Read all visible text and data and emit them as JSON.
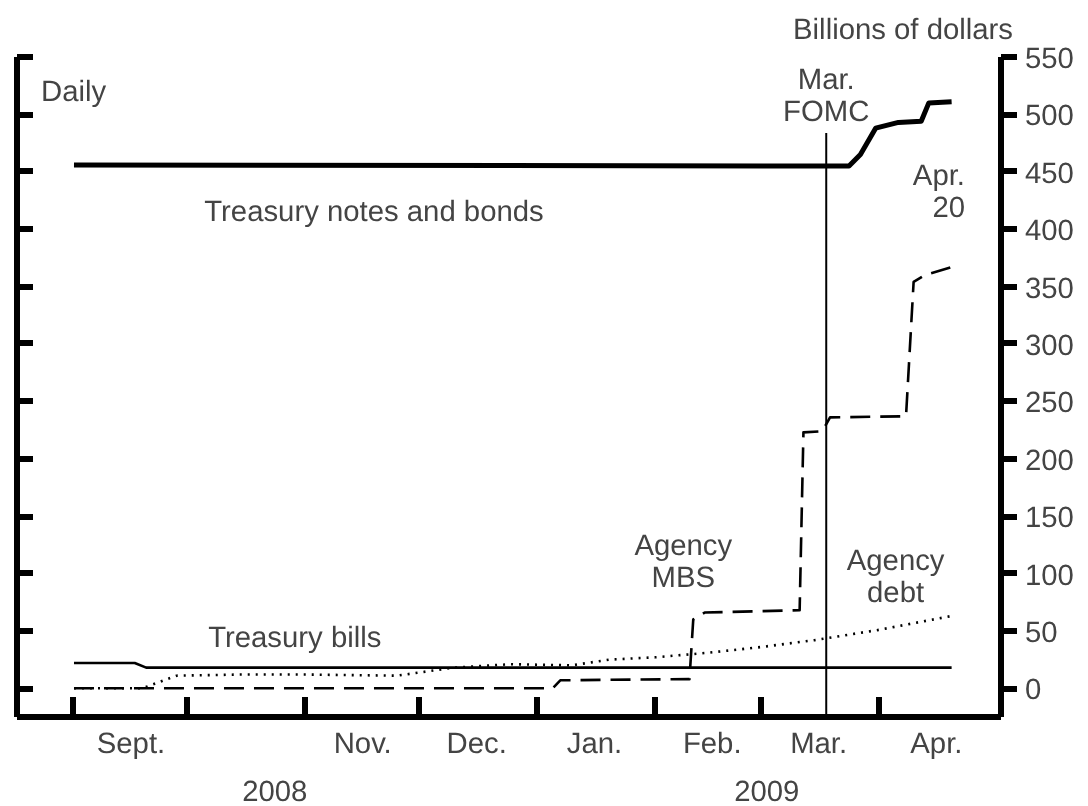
{
  "chart_data": {
    "type": "line",
    "ylabel": "Billions of dollars",
    "xlim": [
      "2008-08-17",
      "2009-05-03"
    ],
    "ylim": [
      -25,
      550
    ],
    "yticks": [
      0,
      50,
      100,
      150,
      200,
      250,
      300,
      350,
      400,
      450,
      500,
      550
    ],
    "xticks": [
      {
        "value": "2008-09-01",
        "label": null
      },
      {
        "value": "2008-10-01",
        "label": null
      },
      {
        "value": "2008-11-01",
        "label": null
      },
      {
        "value": "2008-12-01",
        "label": null
      },
      {
        "value": "2009-01-01",
        "label": null
      },
      {
        "value": "2009-02-01",
        "label": null
      },
      {
        "value": "2009-03-01",
        "label": null
      },
      {
        "value": "2009-04-01",
        "label": null
      },
      {
        "value": "2008-09-16",
        "label": "Sept."
      },
      {
        "value": "2008-11-16",
        "label": "Nov."
      },
      {
        "value": "2008-12-16",
        "label": "Dec."
      },
      {
        "value": "2009-01-16",
        "label": "Jan."
      },
      {
        "value": "2009-02-16",
        "label": "Feb."
      },
      {
        "value": "2009-03-16",
        "label": "Mar."
      },
      {
        "value": "2009-04-16",
        "label": "Apr."
      }
    ],
    "grid": false,
    "series": [
      {
        "name": "Treasury notes and bonds",
        "color": "#000000",
        "line_style": "solid",
        "x": [
          "2008-09-01",
          "2009-03-24",
          "2009-03-27",
          "2009-03-31",
          "2009-04-06",
          "2009-04-12",
          "2009-04-14",
          "2009-04-20"
        ],
        "values": [
          456,
          455,
          465,
          488,
          493,
          494,
          510,
          511
        ]
      },
      {
        "name": "Treasury bills",
        "color": "#000000",
        "line_style": "solid",
        "x": [
          "2008-09-01",
          "2008-09-17",
          "2008-09-20",
          "2009-04-20"
        ],
        "values": [
          22,
          22,
          18,
          18
        ]
      },
      {
        "name": "Agency MBS",
        "color": "#000000",
        "line_style": "dashed",
        "x": [
          "2008-09-01",
          "2009-01-05",
          "2009-01-07",
          "2009-02-10",
          "2009-02-11",
          "2009-02-14",
          "2009-03-11",
          "2009-03-12",
          "2009-03-17",
          "2009-03-19",
          "2009-04-08",
          "2009-04-10",
          "2009-04-13",
          "2009-04-20"
        ],
        "values": [
          0,
          0,
          7,
          8,
          60,
          66,
          68,
          223,
          224,
          236,
          237,
          354,
          360,
          367
        ]
      },
      {
        "name": "Agency debt",
        "color": "#000000",
        "line_style": "dotted",
        "x": [
          "2008-09-01",
          "2008-09-19",
          "2008-09-28",
          "2008-10-15",
          "2008-11-01",
          "2008-11-25",
          "2008-12-10",
          "2008-12-25",
          "2009-01-10",
          "2009-01-20",
          "2009-02-01",
          "2009-02-15",
          "2009-03-01",
          "2009-03-15",
          "2009-04-01",
          "2009-04-20"
        ],
        "values": [
          0,
          0,
          11,
          12,
          12,
          11,
          18,
          21,
          20,
          25,
          27,
          31,
          36,
          42,
          51,
          63
        ]
      }
    ],
    "ref_lines": [
      {
        "axis": "x",
        "value": "2009-03-18",
        "label": "Mar. FOMC"
      }
    ],
    "annotations": [
      "Daily",
      "Apr. 20",
      "2008",
      "2009"
    ]
  }
}
